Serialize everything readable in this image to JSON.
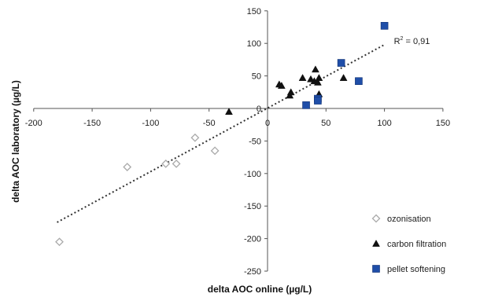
{
  "chart_data": {
    "type": "scatter",
    "xlabel": "delta AOC online (µg/L)",
    "ylabel": "delta AOC laboratory (µg/L)",
    "xlim": [
      -200,
      150
    ],
    "ylim": [
      -250,
      150
    ],
    "x_ticks": [
      -200,
      -150,
      -100,
      -50,
      0,
      50,
      100,
      150
    ],
    "y_ticks": [
      -250,
      -200,
      -150,
      -100,
      -50,
      0,
      50,
      100,
      150
    ],
    "grid": false,
    "legend_position": "bottom-right",
    "series": [
      {
        "name": "ozonisation",
        "marker": "diamond-open",
        "color": "#aaaaaa",
        "points": [
          [
            -178,
            -205
          ],
          [
            -120,
            -90
          ],
          [
            -87,
            -85
          ],
          [
            -78,
            -85
          ],
          [
            -62,
            -45
          ],
          [
            -45,
            -65
          ]
        ]
      },
      {
        "name": "carbon filtration",
        "marker": "triangle",
        "color": "#111111",
        "points": [
          [
            -33,
            -5
          ],
          [
            10,
            37
          ],
          [
            12,
            35
          ],
          [
            19,
            20
          ],
          [
            20,
            25
          ],
          [
            30,
            47
          ],
          [
            37,
            45
          ],
          [
            40,
            42
          ],
          [
            41,
            60
          ],
          [
            43,
            40
          ],
          [
            44,
            47
          ],
          [
            44,
            22
          ],
          [
            65,
            47
          ]
        ]
      },
      {
        "name": "pellet softening",
        "marker": "square",
        "color": "#1f4ea8",
        "points": [
          [
            33,
            5
          ],
          [
            43,
            15
          ],
          [
            43,
            12
          ],
          [
            63,
            70
          ],
          [
            78,
            42
          ],
          [
            100,
            127
          ]
        ]
      }
    ],
    "trendline": {
      "style": "dotted",
      "color": "#333333",
      "from": [
        -180,
        -175
      ],
      "to": [
        100,
        98
      ],
      "label": "R",
      "label_sup": "2",
      "label_value": " = 0,91"
    }
  }
}
